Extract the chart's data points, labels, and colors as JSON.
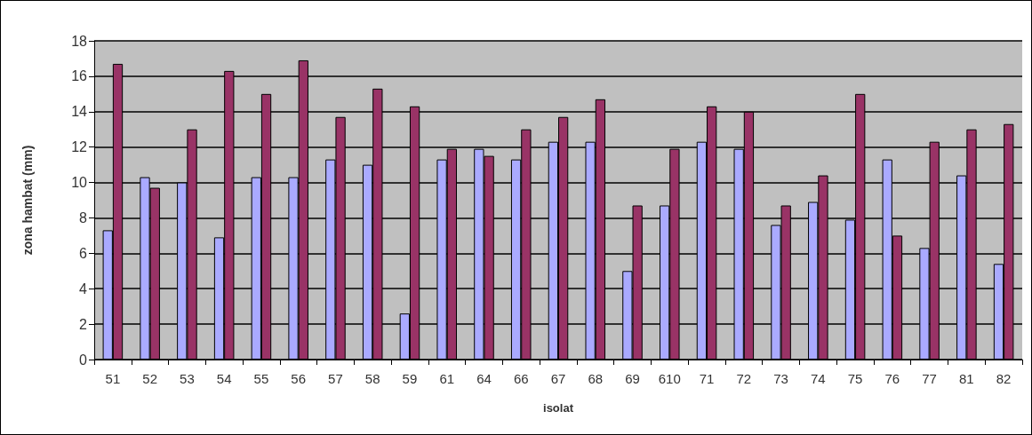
{
  "chart_data": {
    "type": "bar",
    "xlabel": "isolat",
    "ylabel": "zona hambat (mm)",
    "categories": [
      "51",
      "52",
      "53",
      "54",
      "55",
      "56",
      "57",
      "58",
      "59",
      "61",
      "64",
      "66",
      "67",
      "68",
      "69",
      "610",
      "71",
      "72",
      "73",
      "74",
      "75",
      "76",
      "77",
      "81",
      "82"
    ],
    "series": [
      {
        "color": "#aaaaff",
        "values": [
          7.3,
          10.3,
          10.0,
          6.9,
          10.3,
          10.3,
          11.3,
          11.0,
          2.6,
          11.3,
          11.9,
          11.3,
          12.3,
          12.3,
          5.0,
          8.7,
          12.3,
          11.9,
          7.6,
          8.9,
          7.9,
          11.3,
          6.3,
          10.4,
          5.4
        ]
      },
      {
        "color": "#993366",
        "values": [
          16.7,
          9.7,
          13.0,
          16.3,
          15.0,
          16.9,
          13.7,
          15.3,
          14.3,
          11.9,
          11.5,
          13.0,
          13.7,
          14.7,
          8.7,
          11.9,
          14.3,
          14.0,
          8.7,
          10.4,
          15.0,
          7.0,
          12.3,
          13.0,
          13.3
        ]
      }
    ],
    "ylim": [
      0,
      18
    ],
    "yticks": [
      0,
      2,
      4,
      6,
      8,
      10,
      12,
      14,
      16,
      18
    ],
    "grid": "y"
  }
}
